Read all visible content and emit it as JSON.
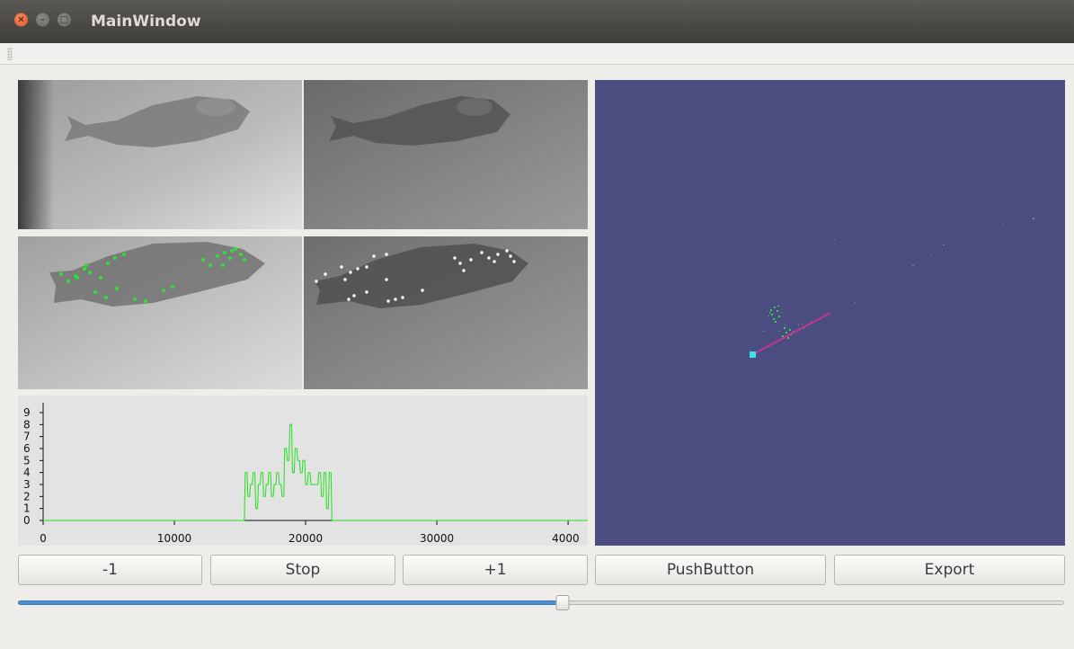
{
  "window": {
    "title": "MainWindow",
    "close_glyph": "×",
    "minimize_glyph": "–",
    "maximize_glyph": "□"
  },
  "views": {
    "camera_left_icon": "fish-camera-image",
    "camera_right_icon": "fish-camera-image",
    "features_left_color": "#2fe03a",
    "features_right_color": "#ffffff",
    "view3d_background": "#4b4c7f",
    "view3d_line_color": "#c2368e",
    "view3d_marker_color": "#40e0f0",
    "view3d_cluster_color": "#33d44a"
  },
  "chart_data": {
    "type": "line",
    "x_ticks": [
      "0",
      "10000",
      "20000",
      "30000",
      "4000"
    ],
    "y_ticks": [
      "0",
      "1",
      "2",
      "3",
      "4",
      "5",
      "6",
      "7",
      "8",
      "9"
    ],
    "xlim": [
      0,
      41500
    ],
    "ylim": [
      0,
      9
    ],
    "series_color": "#22e01e",
    "x": [
      15400,
      15600,
      15800,
      16000,
      16200,
      16400,
      16600,
      16800,
      17000,
      17200,
      17400,
      17600,
      17800,
      18000,
      18200,
      18400,
      18600,
      18800,
      19000,
      19200,
      19400,
      19600,
      19800,
      20000,
      20200,
      20400,
      20600,
      20800,
      21000,
      21200,
      21400,
      21600,
      21800
    ],
    "values": [
      4,
      2,
      3,
      4,
      1,
      3,
      4,
      2,
      3,
      4,
      2,
      3,
      4,
      3,
      2,
      6,
      5,
      8,
      4,
      6,
      5,
      4,
      5,
      3,
      4,
      3,
      3,
      3,
      4,
      2,
      4,
      1,
      4
    ]
  },
  "controls": {
    "minus_label": "-1",
    "stop_label": "Stop",
    "plus_label": "+1",
    "push_label": "PushButton",
    "export_label": "Export",
    "slider_fraction": 0.521
  }
}
